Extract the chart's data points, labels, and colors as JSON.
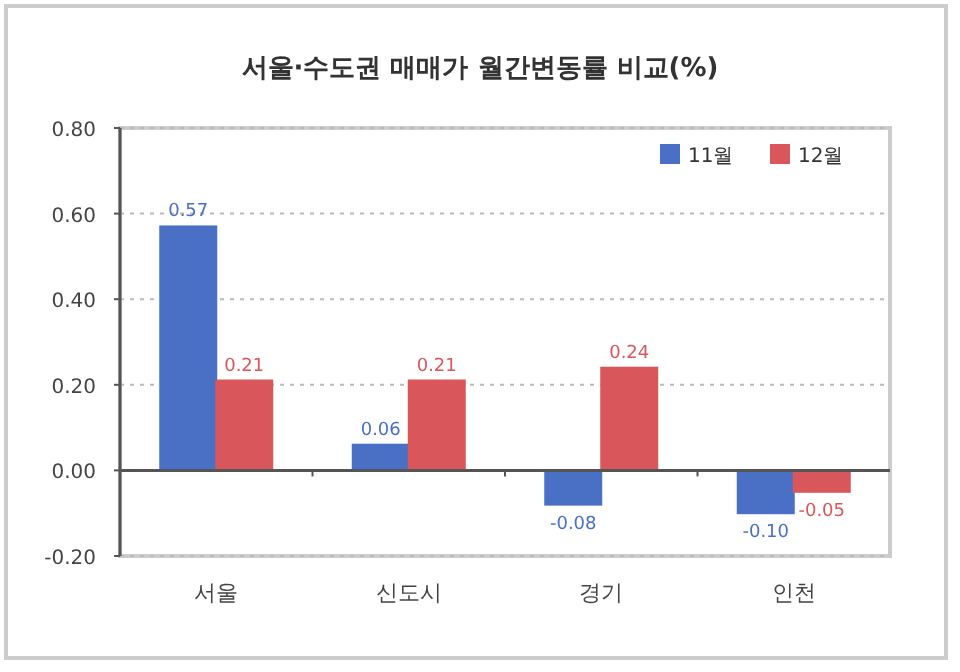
{
  "chart_data": {
    "type": "bar",
    "title": "서울·수도권 매매가 월간변동률 비교(%)",
    "categories": [
      "서울",
      "신도시",
      "경기",
      "인천"
    ],
    "series": [
      {
        "name": "11월",
        "color": "#4a70c6",
        "values": [
          0.57,
          0.06,
          -0.08,
          -0.1
        ],
        "value_labels": [
          "0.57",
          "0.06",
          "-0.08",
          "-0.10"
        ]
      },
      {
        "name": "12월",
        "color": "#d9575a",
        "values": [
          0.21,
          0.21,
          0.24,
          -0.05
        ],
        "value_labels": [
          "0.21",
          "0.21",
          "0.24",
          "-0.05"
        ]
      }
    ],
    "ylim": [
      -0.2,
      0.8
    ],
    "yticks": [
      {
        "value": -0.2,
        "label": "-0.20"
      },
      {
        "value": 0,
        "label": "0.00"
      },
      {
        "value": 0.2,
        "label": "0.20"
      },
      {
        "value": 0.4,
        "label": "0.40"
      },
      {
        "value": 0.6,
        "label": "0.60"
      },
      {
        "value": 0.8,
        "label": "0.80"
      }
    ],
    "grid": "y",
    "legend": "top right"
  }
}
